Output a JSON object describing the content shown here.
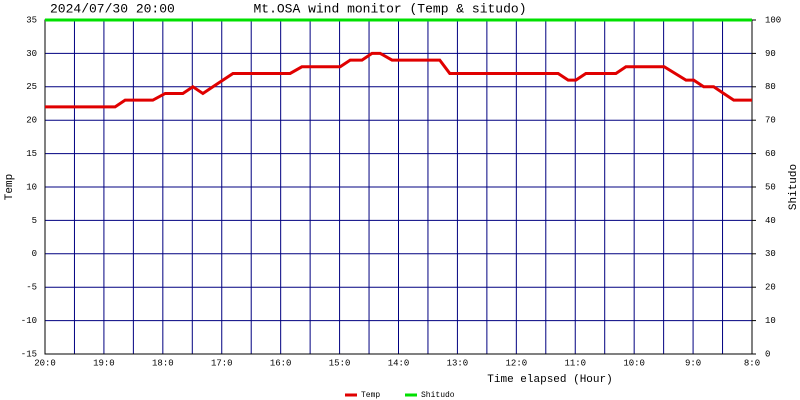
{
  "chart_data": {
    "type": "line",
    "title": "Mt.OSA wind monitor (Temp & situdo)",
    "timestamp": "2024/07/30 20:00",
    "xlabel": "Time elapsed (Hour)",
    "ylabel": "Temp",
    "y2label": "Shitudo",
    "xlim": [
      20,
      8
    ],
    "xticks": [
      {
        "value": 20,
        "label": "20:0"
      },
      {
        "value": 19,
        "label": "19:0"
      },
      {
        "value": 18,
        "label": "18:0"
      },
      {
        "value": 17,
        "label": "17:0"
      },
      {
        "value": 16,
        "label": "16:0"
      },
      {
        "value": 15,
        "label": "15:0"
      },
      {
        "value": 14,
        "label": "14:0"
      },
      {
        "value": 13,
        "label": "13:0"
      },
      {
        "value": 12,
        "label": "12:0"
      },
      {
        "value": 11,
        "label": "11:0"
      },
      {
        "value": 10,
        "label": "10:0"
      },
      {
        "value": 9,
        "label": "9:0"
      },
      {
        "value": 8,
        "label": "8:0"
      }
    ],
    "xminorticks": [
      19.5,
      18.5,
      17.5,
      16.5,
      15.5,
      14.5,
      13.5,
      12.5,
      11.5,
      10.5,
      9.5,
      8.5
    ],
    "ylim": [
      -15,
      35
    ],
    "yticks": [
      35,
      30,
      25,
      20,
      15,
      10,
      5,
      0,
      -5,
      -10,
      -15
    ],
    "y2lim": [
      0,
      100
    ],
    "y2ticks": [
      100,
      90,
      80,
      70,
      60,
      50,
      40,
      30,
      20,
      10,
      0
    ],
    "grid": true,
    "grid_color": "#000080",
    "series": [
      {
        "name": "Temp",
        "color": "#e00000",
        "x": [
          20,
          18.81,
          18.64,
          18.17,
          17.96,
          17.66,
          17.49,
          17.32,
          17.15,
          16.81,
          15.84,
          15.64,
          14.99,
          14.82,
          14.62,
          14.45,
          14.31,
          14.11,
          13.3,
          13.13,
          11.29,
          11.12,
          10.99,
          10.82,
          10.31,
          10.14,
          9.49,
          9.12,
          8.99,
          8.82,
          8.65,
          8.48,
          8.31,
          8
        ],
        "values": [
          22,
          22,
          23,
          23,
          24,
          24,
          25,
          24,
          25,
          27,
          27,
          28,
          28,
          29,
          29,
          30,
          30,
          29,
          29,
          27,
          27,
          26,
          26,
          27,
          27,
          28,
          28,
          26,
          26,
          25,
          25,
          24,
          23,
          23
        ]
      },
      {
        "name": "Shitudo",
        "color": "#00e000",
        "axis": "y2",
        "x": [
          20,
          8
        ],
        "values": [
          100,
          100
        ]
      }
    ]
  }
}
